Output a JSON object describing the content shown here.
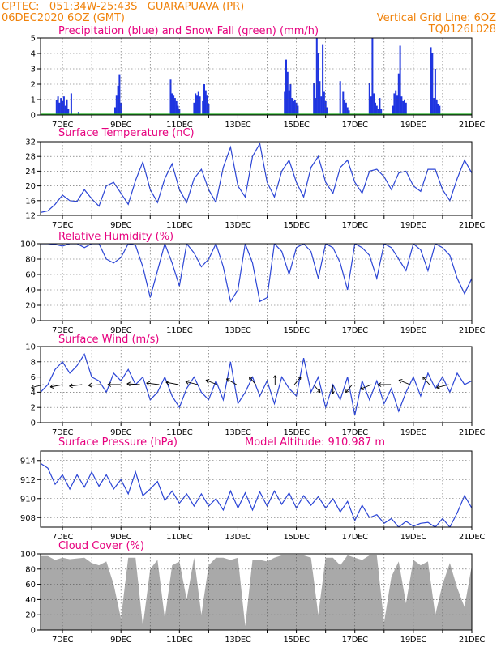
{
  "header": {
    "line1_left": "CPTEC:   051:34W-25:43S   GUARAPUAVA (PR)",
    "line2_left": "06DEC2020 6OZ (GMT)",
    "line1_right": "Vertical Grid Line: 6OZ",
    "line2_right": "TQ0126L028"
  },
  "x_labels": [
    "7DEC",
    "9DEC",
    "11DEC",
    "13DEC",
    "15DEC",
    "17DEC",
    "19DEC",
    "21DEC"
  ],
  "chart_data": [
    {
      "id": "precip",
      "type": "bar",
      "title": "Precipitation (blue) and Snow Fall (green) (mm/h)",
      "ylim": [
        0,
        5
      ],
      "yticks": [
        0,
        1,
        2,
        3,
        4,
        5
      ],
      "colors": {
        "rain": "#1f35e0",
        "snow": "#22aa22"
      },
      "series": [
        {
          "name": "blue",
          "x": [
            6.8,
            6.85,
            6.9,
            6.95,
            7.0,
            7.05,
            7.1,
            7.15,
            7.2,
            7.3,
            7.55,
            8.8,
            8.85,
            8.9,
            8.95,
            9.0,
            10.7,
            10.75,
            10.8,
            10.85,
            10.9,
            10.95,
            11.0,
            11.5,
            11.55,
            11.6,
            11.65,
            11.7,
            11.8,
            11.85,
            11.9,
            11.95,
            12.0,
            14.6,
            14.65,
            14.7,
            14.75,
            14.8,
            14.85,
            14.9,
            14.95,
            15.0,
            15.05,
            15.6,
            15.65,
            15.7,
            15.75,
            15.8,
            15.85,
            15.9,
            15.95,
            16.0,
            16.05,
            16.5,
            16.6,
            16.65,
            16.7,
            16.75,
            16.8,
            17.5,
            17.55,
            17.6,
            17.65,
            17.7,
            17.75,
            17.8,
            17.85,
            17.9,
            18.3,
            18.35,
            18.4,
            18.45,
            18.5,
            18.55,
            18.6,
            18.65,
            18.7,
            18.75,
            19.6,
            19.65,
            19.7,
            19.75,
            19.8,
            19.85,
            19.9
          ],
          "values": [
            1.0,
            1.2,
            0.8,
            1.1,
            0.9,
            1.2,
            0.6,
            1.0,
            0.4,
            1.4,
            0.2,
            0.5,
            1.3,
            1.9,
            2.6,
            0.8,
            2.3,
            1.4,
            1.3,
            1.1,
            0.9,
            0.6,
            0.4,
            0.8,
            1.4,
            1.3,
            1.5,
            1.2,
            0.9,
            2.0,
            1.6,
            1.3,
            0.7,
            1.5,
            3.6,
            2.8,
            1.6,
            2.0,
            1.1,
            0.9,
            1.0,
            0.8,
            0.6,
            2.1,
            1.1,
            5.0,
            4.0,
            2.2,
            1.2,
            4.6,
            1.5,
            0.9,
            0.5,
            2.2,
            1.5,
            1.0,
            0.8,
            0.5,
            0.3,
            2.1,
            1.2,
            5.0,
            1.4,
            0.8,
            0.6,
            0.4,
            1.1,
            0.4,
            0.6,
            1.4,
            1.6,
            1.3,
            2.7,
            4.5,
            1.2,
            0.9,
            1.0,
            0.8,
            4.4,
            4.0,
            1.1,
            3.0,
            1.0,
            0.7,
            0.6
          ]
        }
      ]
    },
    {
      "id": "temperature",
      "type": "line",
      "title": "Surface Temperature (nC)",
      "ylim": [
        12,
        32
      ],
      "yticks": [
        12,
        16,
        20,
        24,
        28,
        32
      ],
      "color": "#2b45d6",
      "x": [
        6.25,
        6.5,
        6.75,
        7.0,
        7.25,
        7.5,
        7.75,
        8.0,
        8.25,
        8.5,
        8.75,
        9.0,
        9.25,
        9.5,
        9.75,
        10.0,
        10.25,
        10.5,
        10.75,
        11.0,
        11.25,
        11.5,
        11.75,
        12.0,
        12.25,
        12.5,
        12.75,
        13.0,
        13.25,
        13.5,
        13.75,
        14.0,
        14.25,
        14.5,
        14.75,
        15.0,
        15.25,
        15.5,
        15.75,
        16.0,
        16.25,
        16.5,
        16.75,
        17.0,
        17.25,
        17.5,
        17.75,
        18.0,
        18.25,
        18.5,
        18.75,
        19.0,
        19.25,
        19.5,
        19.75,
        20.0,
        20.25,
        20.5,
        20.75,
        21.0
      ],
      "values": [
        12.8,
        13.2,
        15.0,
        17.5,
        16.0,
        15.8,
        19.0,
        16.5,
        14.5,
        20.0,
        21.0,
        18.0,
        15.0,
        21.5,
        26.5,
        19.0,
        15.5,
        22.0,
        26.0,
        19.0,
        15.5,
        22.0,
        24.5,
        19.0,
        15.5,
        25.0,
        30.5,
        20.0,
        17.0,
        28.0,
        31.5,
        21.0,
        17.0,
        24.0,
        27.0,
        21.0,
        17.0,
        25.0,
        28.0,
        21.0,
        18.0,
        25.0,
        27.0,
        21.0,
        18.0,
        24.0,
        24.5,
        22.5,
        19.0,
        23.5,
        24.0,
        20.0,
        18.5,
        24.5,
        24.5,
        19.0,
        16.0,
        22.0,
        27.0,
        23.5
      ]
    },
    {
      "id": "humidity",
      "type": "line",
      "title": "Relative Humidity (%)",
      "ylim": [
        0,
        100
      ],
      "yticks": [
        0,
        20,
        40,
        60,
        80,
        100
      ],
      "color": "#2b45d6",
      "x": [
        6.25,
        6.5,
        6.75,
        7.0,
        7.25,
        7.5,
        7.75,
        8.0,
        8.25,
        8.5,
        8.75,
        9.0,
        9.25,
        9.5,
        9.75,
        10.0,
        10.25,
        10.5,
        10.75,
        11.0,
        11.25,
        11.5,
        11.75,
        12.0,
        12.25,
        12.5,
        12.75,
        13.0,
        13.25,
        13.5,
        13.75,
        14.0,
        14.25,
        14.5,
        14.75,
        15.0,
        15.25,
        15.5,
        15.75,
        16.0,
        16.25,
        16.5,
        16.75,
        17.0,
        17.25,
        17.5,
        17.75,
        18.0,
        18.25,
        18.5,
        18.75,
        19.0,
        19.25,
        19.5,
        19.75,
        20.0,
        20.25,
        20.5,
        20.75,
        21.0
      ],
      "values": [
        100,
        100,
        99,
        97,
        100,
        100,
        95,
        100,
        100,
        80,
        75,
        82,
        100,
        98,
        70,
        30,
        65,
        100,
        75,
        45,
        100,
        88,
        70,
        80,
        100,
        70,
        25,
        40,
        100,
        75,
        25,
        30,
        100,
        90,
        60,
        95,
        100,
        90,
        55,
        100,
        95,
        75,
        40,
        100,
        95,
        85,
        55,
        100,
        95,
        80,
        65,
        100,
        92,
        65,
        100,
        95,
        85,
        55,
        35,
        55
      ]
    },
    {
      "id": "wind",
      "type": "line",
      "title": "Surface Wind (m/s)",
      "ylim": [
        0,
        10
      ],
      "yticks": [
        0,
        2,
        4,
        6,
        8,
        10
      ],
      "color": "#2b45d6",
      "x": [
        6.25,
        6.5,
        6.75,
        7.0,
        7.25,
        7.5,
        7.75,
        8.0,
        8.25,
        8.5,
        8.75,
        9.0,
        9.25,
        9.5,
        9.75,
        10.0,
        10.25,
        10.5,
        10.75,
        11.0,
        11.25,
        11.5,
        11.75,
        12.0,
        12.25,
        12.5,
        12.75,
        13.0,
        13.25,
        13.5,
        13.75,
        14.0,
        14.25,
        14.5,
        14.75,
        15.0,
        15.25,
        15.5,
        15.75,
        16.0,
        16.25,
        16.5,
        16.75,
        17.0,
        17.25,
        17.5,
        17.75,
        18.0,
        18.25,
        18.5,
        18.75,
        19.0,
        19.25,
        19.5,
        19.75,
        20.0,
        20.25,
        20.5,
        20.75,
        21.0
      ],
      "values": [
        4.0,
        5.0,
        7.0,
        8.0,
        6.5,
        7.5,
        9.0,
        6.0,
        5.5,
        4.0,
        6.5,
        5.5,
        7.0,
        5.0,
        6.0,
        3.0,
        4.0,
        6.0,
        3.5,
        2.0,
        4.5,
        6.0,
        4.0,
        3.0,
        5.5,
        3.0,
        8.0,
        2.5,
        4.0,
        6.0,
        3.5,
        5.5,
        2.5,
        6.0,
        4.5,
        3.5,
        8.5,
        4.0,
        6.0,
        2.0,
        5.0,
        3.0,
        6.0,
        1.0,
        5.5,
        3.0,
        5.5,
        2.5,
        4.5,
        1.5,
        4.0,
        6.0,
        3.5,
        6.5,
        4.5,
        6.0,
        4.0,
        6.5,
        5.0,
        5.5
      ]
    },
    {
      "id": "pressure",
      "type": "line",
      "title": "Surface Pressure (hPa)",
      "subtitle": "Model Altitude: 910.987 m",
      "ylim": [
        907,
        915
      ],
      "yticks": [
        908,
        910,
        912,
        914
      ],
      "color": "#2b45d6",
      "x": [
        6.25,
        6.5,
        6.75,
        7.0,
        7.25,
        7.5,
        7.75,
        8.0,
        8.25,
        8.5,
        8.75,
        9.0,
        9.25,
        9.5,
        9.75,
        10.0,
        10.25,
        10.5,
        10.75,
        11.0,
        11.25,
        11.5,
        11.75,
        12.0,
        12.25,
        12.5,
        12.75,
        13.0,
        13.25,
        13.5,
        13.75,
        14.0,
        14.25,
        14.5,
        14.75,
        15.0,
        15.25,
        15.5,
        15.75,
        16.0,
        16.25,
        16.5,
        16.75,
        17.0,
        17.25,
        17.5,
        17.75,
        18.0,
        18.25,
        18.5,
        18.75,
        19.0,
        19.25,
        19.5,
        19.75,
        20.0,
        20.25,
        20.5,
        20.75,
        21.0
      ],
      "values": [
        913.7,
        913.2,
        911.5,
        912.5,
        911.0,
        912.5,
        911.2,
        912.8,
        911.3,
        912.5,
        911.0,
        912.0,
        910.5,
        912.8,
        910.3,
        911.0,
        911.8,
        909.8,
        910.8,
        909.5,
        910.5,
        909.2,
        910.5,
        909.2,
        910.0,
        908.8,
        910.8,
        909.0,
        910.6,
        908.8,
        910.7,
        909.2,
        910.8,
        909.4,
        910.6,
        909.0,
        910.3,
        909.3,
        910.2,
        909.0,
        910.0,
        908.6,
        909.7,
        907.7,
        909.3,
        908.0,
        908.3,
        907.4,
        907.9,
        907.0,
        907.6,
        907.1,
        907.4,
        907.5,
        907.0,
        907.9,
        907.0,
        908.5,
        910.3,
        909.0
      ]
    },
    {
      "id": "cloud",
      "type": "area",
      "title": "Cloud Cover (%)",
      "ylim": [
        0,
        100
      ],
      "yticks": [
        0,
        20,
        40,
        60,
        80,
        100
      ],
      "color": "#a9a9a9",
      "x": [
        6.25,
        6.5,
        6.75,
        7.0,
        7.25,
        7.5,
        7.75,
        8.0,
        8.25,
        8.5,
        8.75,
        9.0,
        9.25,
        9.5,
        9.75,
        10.0,
        10.25,
        10.5,
        10.75,
        11.0,
        11.25,
        11.5,
        11.75,
        12.0,
        12.25,
        12.5,
        12.75,
        13.0,
        13.25,
        13.5,
        13.75,
        14.0,
        14.25,
        14.5,
        14.75,
        15.0,
        15.25,
        15.5,
        15.75,
        16.0,
        16.25,
        16.5,
        16.75,
        17.0,
        17.25,
        17.5,
        17.75,
        18.0,
        18.25,
        18.5,
        18.75,
        19.0,
        19.25,
        19.5,
        19.75,
        20.0,
        20.25,
        20.5,
        20.75,
        21.0
      ],
      "values": [
        97,
        97,
        92,
        95,
        93,
        94,
        95,
        88,
        85,
        90,
        60,
        15,
        95,
        95,
        5,
        80,
        92,
        15,
        85,
        90,
        40,
        95,
        20,
        85,
        95,
        95,
        92,
        95,
        5,
        92,
        92,
        90,
        95,
        98,
        98,
        98,
        98,
        95,
        20,
        95,
        95,
        85,
        98,
        95,
        92,
        98,
        98,
        10,
        70,
        90,
        35,
        92,
        85,
        90,
        20,
        60,
        88,
        55,
        30,
        85
      ]
    }
  ]
}
